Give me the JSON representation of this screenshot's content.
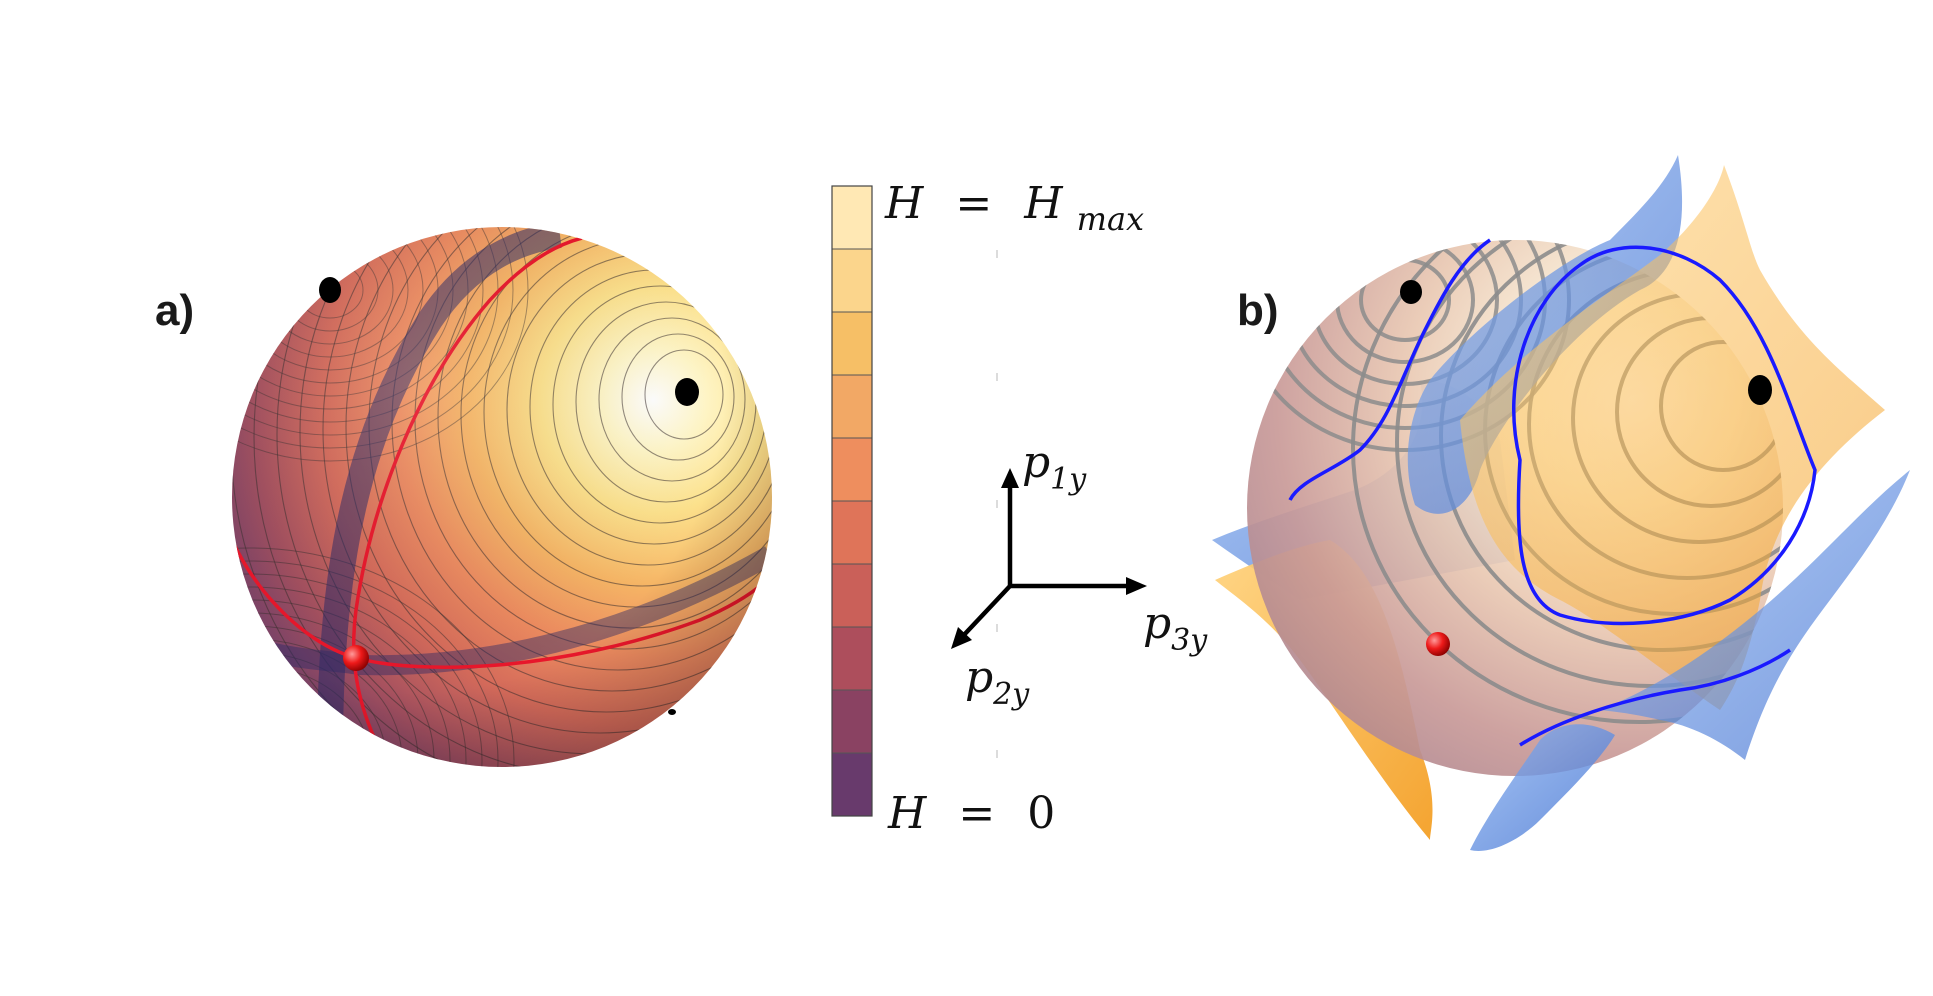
{
  "panels": {
    "a": {
      "label": "a)"
    },
    "b": {
      "label": "b)"
    }
  },
  "colorbar": {
    "top_label": {
      "symbol": "H",
      "equals": "=",
      "value": "H",
      "subscript": "max"
    },
    "bottom_label": {
      "symbol": "H",
      "equals": "=",
      "value": "0"
    },
    "colors": [
      "#ffe8b4",
      "#fbd58c",
      "#f6bf66",
      "#f2a865",
      "#ee8e5e",
      "#df7459",
      "#ca6059",
      "#ad4e5c",
      "#8a4262",
      "#683a6c"
    ]
  },
  "axes": {
    "vertical": {
      "base": "p",
      "subscript": "1y"
    },
    "diagonal": {
      "base": "p",
      "subscript": "2y"
    },
    "horizontal": {
      "base": "p",
      "subscript": "3y"
    }
  },
  "colors": {
    "separatrix": "#e8172b",
    "saddle_point": "#e0101a",
    "fixed_point": "#000000",
    "contour_b": "#8c8c8c",
    "blue_curve": "#1a1aff",
    "blue_surface": "#5b8fe6",
    "orange_surface": "#f7a21c"
  }
}
